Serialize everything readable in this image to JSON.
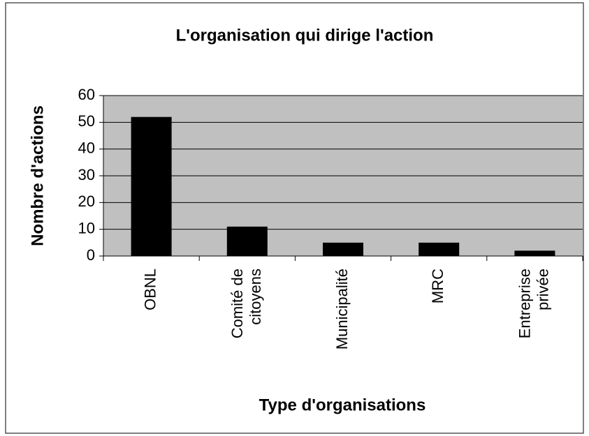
{
  "chart_data": {
    "type": "bar",
    "title": "L'organisation qui dirige l'action",
    "x_label": "Type d'organisations",
    "y_label": "Nombre d'actions",
    "categories": [
      "OBNL",
      "Comité de\ncitoyens",
      "Municipalité",
      "MRC",
      "Entreprise\nprivée"
    ],
    "values": [
      52,
      11,
      5,
      5,
      2
    ],
    "color": "#000000",
    "plot_background": "#c0c0c0",
    "ylim": [
      0,
      60
    ],
    "yticks": [
      0,
      10,
      20,
      30,
      40,
      50,
      60
    ],
    "grid": true
  }
}
